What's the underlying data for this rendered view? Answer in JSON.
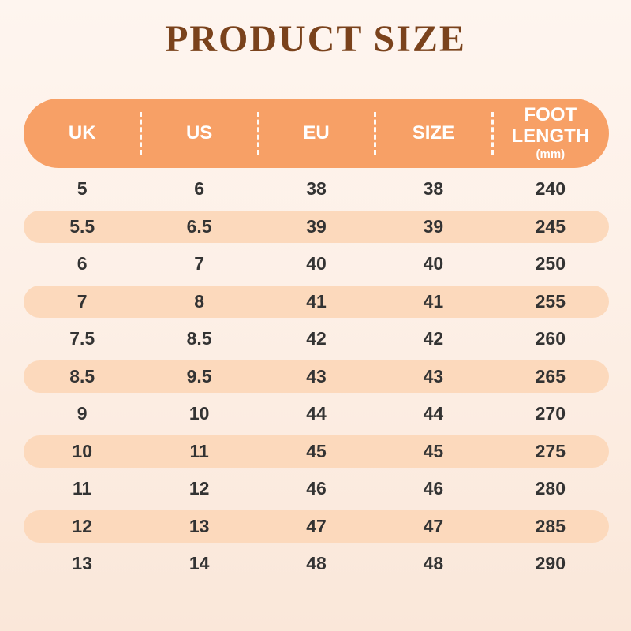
{
  "page": {
    "title": "PRODUCT SIZE"
  },
  "colors": {
    "background_top": "#fef5ef",
    "background_bottom": "#fae7d9",
    "header_bg": "#f7a066",
    "stripe_bg": "#fcd9bc",
    "title_text": "#7a421c",
    "header_text": "#ffffff",
    "cell_text": "#333333"
  },
  "chart_data": {
    "type": "table",
    "title": "PRODUCT SIZE",
    "columns": [
      {
        "label": "UK"
      },
      {
        "label": "US"
      },
      {
        "label": "EU"
      },
      {
        "label": "SIZE"
      },
      {
        "label": "FOOT LENGTH",
        "unit": "(mm)"
      }
    ],
    "rows": [
      [
        "5",
        "6",
        "38",
        "38",
        "240"
      ],
      [
        "5.5",
        "6.5",
        "39",
        "39",
        "245"
      ],
      [
        "6",
        "7",
        "40",
        "40",
        "250"
      ],
      [
        "7",
        "8",
        "41",
        "41",
        "255"
      ],
      [
        "7.5",
        "8.5",
        "42",
        "42",
        "260"
      ],
      [
        "8.5",
        "9.5",
        "43",
        "43",
        "265"
      ],
      [
        "9",
        "10",
        "44",
        "44",
        "270"
      ],
      [
        "10",
        "11",
        "45",
        "45",
        "275"
      ],
      [
        "11",
        "12",
        "46",
        "46",
        "280"
      ],
      [
        "12",
        "13",
        "47",
        "47",
        "285"
      ],
      [
        "13",
        "14",
        "48",
        "48",
        "290"
      ]
    ],
    "layout": {
      "stripe_pattern": "every second row highlighted, starting with row 2",
      "header_shape": "rounded capsule",
      "column_separators": "white dashed vertical lines in header only"
    }
  }
}
